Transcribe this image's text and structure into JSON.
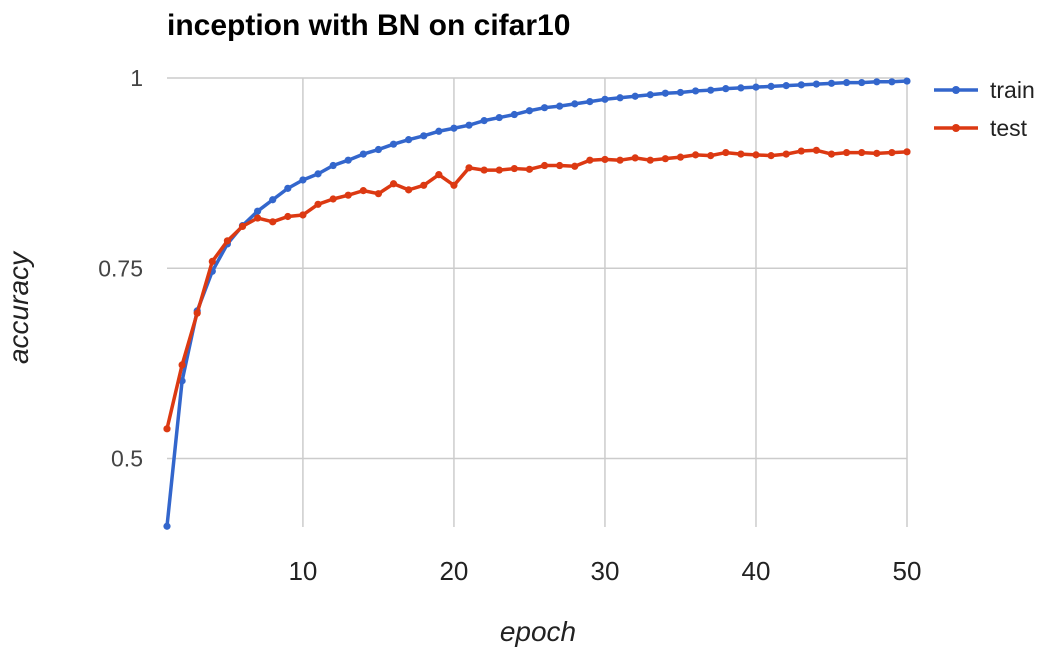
{
  "chart_data": {
    "type": "line",
    "title": "inception with BN on cifar10",
    "xlabel": "epoch",
    "ylabel": "accuracy",
    "xlim": [
      1,
      50
    ],
    "ylim": [
      0.41,
      1.0
    ],
    "xticks": [
      10,
      20,
      30,
      40,
      50
    ],
    "xtick_labels": [
      "10",
      "20",
      "30",
      "40",
      "50"
    ],
    "yticks": [
      0.5,
      0.75,
      1
    ],
    "ytick_labels": [
      "0.5",
      "0.75",
      "1"
    ],
    "grid": true,
    "legend_position": "top-right",
    "x": [
      1,
      2,
      3,
      4,
      5,
      6,
      7,
      8,
      9,
      10,
      11,
      12,
      13,
      14,
      15,
      16,
      17,
      18,
      19,
      20,
      21,
      22,
      23,
      24,
      25,
      26,
      27,
      28,
      29,
      30,
      31,
      32,
      33,
      34,
      35,
      36,
      37,
      38,
      39,
      40,
      41,
      42,
      43,
      44,
      45,
      46,
      47,
      48,
      49,
      50
    ],
    "series": [
      {
        "name": "train",
        "color": "#3366cc",
        "values": [
          0.411,
          0.602,
          0.694,
          0.746,
          0.782,
          0.806,
          0.825,
          0.84,
          0.855,
          0.866,
          0.874,
          0.885,
          0.892,
          0.9,
          0.906,
          0.913,
          0.919,
          0.924,
          0.93,
          0.934,
          0.938,
          0.944,
          0.948,
          0.952,
          0.957,
          0.961,
          0.963,
          0.966,
          0.969,
          0.972,
          0.974,
          0.976,
          0.978,
          0.98,
          0.981,
          0.983,
          0.984,
          0.986,
          0.987,
          0.988,
          0.989,
          0.99,
          0.991,
          0.992,
          0.993,
          0.994,
          0.994,
          0.995,
          0.995,
          0.996
        ]
      },
      {
        "name": "test",
        "color": "#dc3912",
        "values": [
          0.539,
          0.623,
          0.691,
          0.759,
          0.786,
          0.805,
          0.816,
          0.811,
          0.818,
          0.82,
          0.834,
          0.841,
          0.846,
          0.852,
          0.848,
          0.861,
          0.853,
          0.859,
          0.873,
          0.859,
          0.882,
          0.879,
          0.879,
          0.881,
          0.88,
          0.885,
          0.885,
          0.884,
          0.892,
          0.893,
          0.892,
          0.895,
          0.892,
          0.894,
          0.896,
          0.899,
          0.898,
          0.902,
          0.9,
          0.899,
          0.898,
          0.9,
          0.904,
          0.905,
          0.9,
          0.902,
          0.902,
          0.901,
          0.902,
          0.903
        ]
      }
    ]
  }
}
